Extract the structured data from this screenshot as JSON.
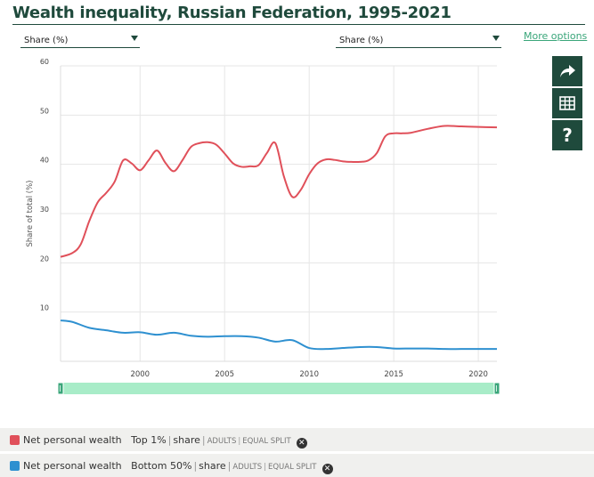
{
  "title": "Wealth inequality, Russian Federation, 1995-2021",
  "selectors": {
    "left_label": "Share (%)",
    "right_label": "Share (%)"
  },
  "more_options": "More options",
  "side_buttons": [
    "share-icon",
    "table-icon",
    "help-icon"
  ],
  "help_glyph": "?",
  "colors": {
    "top1": "#e0505a",
    "bottom50": "#2e90d0",
    "brand": "#1f4a3c",
    "range": "#a8ecc8"
  },
  "chart_data": {
    "type": "line",
    "ylabel": "Share of total (%)",
    "xlabel": "",
    "ylim": [
      0,
      60
    ],
    "xlim": [
      1995.3,
      2021.1
    ],
    "yticks": [
      10,
      20,
      30,
      40,
      50,
      60
    ],
    "xticks": [
      2000,
      2005,
      2010,
      2015,
      2020
    ],
    "grid": true,
    "series": [
      {
        "key": "top1",
        "x": [
          1995.3,
          1996,
          1996.5,
          1997,
          1997.5,
          1998,
          1998.5,
          1999,
          1999.5,
          2000,
          2000.5,
          2001,
          2001.5,
          2002,
          2002.5,
          2003,
          2003.5,
          2004,
          2004.5,
          2005,
          2005.5,
          2006,
          2006.5,
          2007,
          2007.5,
          2008,
          2008.5,
          2009,
          2009.5,
          2010,
          2010.5,
          2011,
          2011.5,
          2012,
          2012.5,
          2013,
          2013.5,
          2014,
          2014.5,
          2015,
          2015.5,
          2016,
          2017,
          2018,
          2019,
          2020,
          2021.1
        ],
        "y": [
          21.2,
          22.0,
          23.8,
          28.5,
          32.3,
          34.2,
          36.5,
          40.8,
          40.2,
          38.8,
          40.8,
          42.8,
          40.3,
          38.6,
          40.8,
          43.5,
          44.3,
          44.5,
          44.0,
          42.2,
          40.2,
          39.5,
          39.6,
          39.8,
          42.3,
          44.3,
          37.6,
          33.4,
          34.8,
          38.0,
          40.2,
          41.0,
          40.9,
          40.6,
          40.5,
          40.5,
          40.8,
          42.3,
          45.7,
          46.3,
          46.3,
          46.4,
          47.2,
          47.8,
          47.7,
          47.6,
          47.5
        ]
      },
      {
        "key": "bottom50",
        "x": [
          1995.3,
          1996,
          1997,
          1998,
          1999,
          2000,
          2001,
          2002,
          2003,
          2004,
          2005,
          2006,
          2007,
          2008,
          2009,
          2010,
          2011,
          2012,
          2013,
          2014,
          2015,
          2016,
          2017,
          2018,
          2019,
          2020,
          2021.1
        ],
        "y": [
          8.3,
          8.0,
          6.8,
          6.3,
          5.8,
          5.9,
          5.4,
          5.8,
          5.2,
          5.0,
          5.1,
          5.1,
          4.8,
          4.0,
          4.3,
          2.7,
          2.5,
          2.7,
          2.9,
          2.9,
          2.6,
          2.6,
          2.6,
          2.5,
          2.5,
          2.5,
          2.5
        ]
      }
    ]
  },
  "legend": [
    {
      "key": "top1",
      "name": "Net personal wealth",
      "percentile": "Top 1%",
      "measure": "share",
      "pop": "ADULTS",
      "unit": "EQUAL SPLIT",
      "sep": "|"
    },
    {
      "key": "bottom50",
      "name": "Net personal wealth",
      "percentile": "Bottom 50%",
      "measure": "share",
      "pop": "ADULTS",
      "unit": "EQUAL SPLIT",
      "sep": "|"
    }
  ]
}
